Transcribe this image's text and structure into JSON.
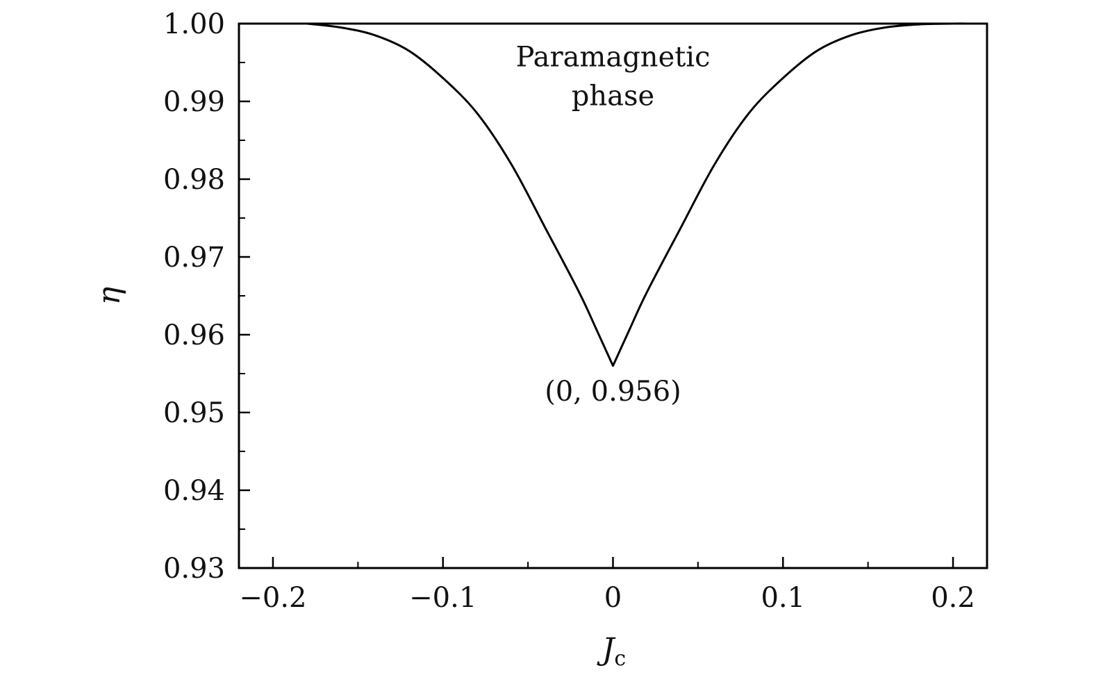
{
  "chart_data": {
    "type": "line",
    "xlabel": "J",
    "xlabel_subscript": "c",
    "ylabel": "η",
    "xlim": [
      -0.22,
      0.22
    ],
    "ylim": [
      0.93,
      1.0
    ],
    "x_ticks": [
      -0.2,
      -0.1,
      0,
      0.1,
      0.2
    ],
    "x_tick_labels": [
      "−0.2",
      "−0.1",
      "0",
      "0.1",
      "0.2"
    ],
    "x_minor_step": 0.05,
    "y_ticks": [
      0.93,
      0.94,
      0.95,
      0.96,
      0.97,
      0.98,
      0.99,
      1.0
    ],
    "y_tick_labels": [
      "0.93",
      "0.94",
      "0.95",
      "0.96",
      "0.97",
      "0.98",
      "0.99",
      "1.00"
    ],
    "y_minor_step": 0.005,
    "grid": false,
    "legend": "none",
    "line_color": "#000000",
    "series": [
      {
        "x": [
          -0.18,
          -0.16,
          -0.14,
          -0.12,
          -0.1,
          -0.08,
          -0.06,
          -0.04,
          -0.02,
          -0.01,
          0,
          0.01,
          0.02,
          0.04,
          0.06,
          0.08,
          0.1,
          0.12,
          0.14,
          0.16,
          0.18,
          0.2,
          0.21
        ],
        "y": [
          1.0,
          0.9995,
          0.9985,
          0.9965,
          0.993,
          0.9885,
          0.982,
          0.9738,
          0.9655,
          0.9608,
          0.956,
          0.9608,
          0.9655,
          0.9738,
          0.982,
          0.9885,
          0.993,
          0.9965,
          0.9985,
          0.9995,
          0.9999,
          1.0,
          1.0
        ]
      }
    ],
    "annotations": [
      {
        "lines": [
          "Paramagnetic",
          "phase"
        ],
        "x": 0,
        "y": 0.9945
      },
      {
        "lines": [
          "(0, 0.956)"
        ],
        "x": 0,
        "y": 0.9515
      }
    ]
  }
}
